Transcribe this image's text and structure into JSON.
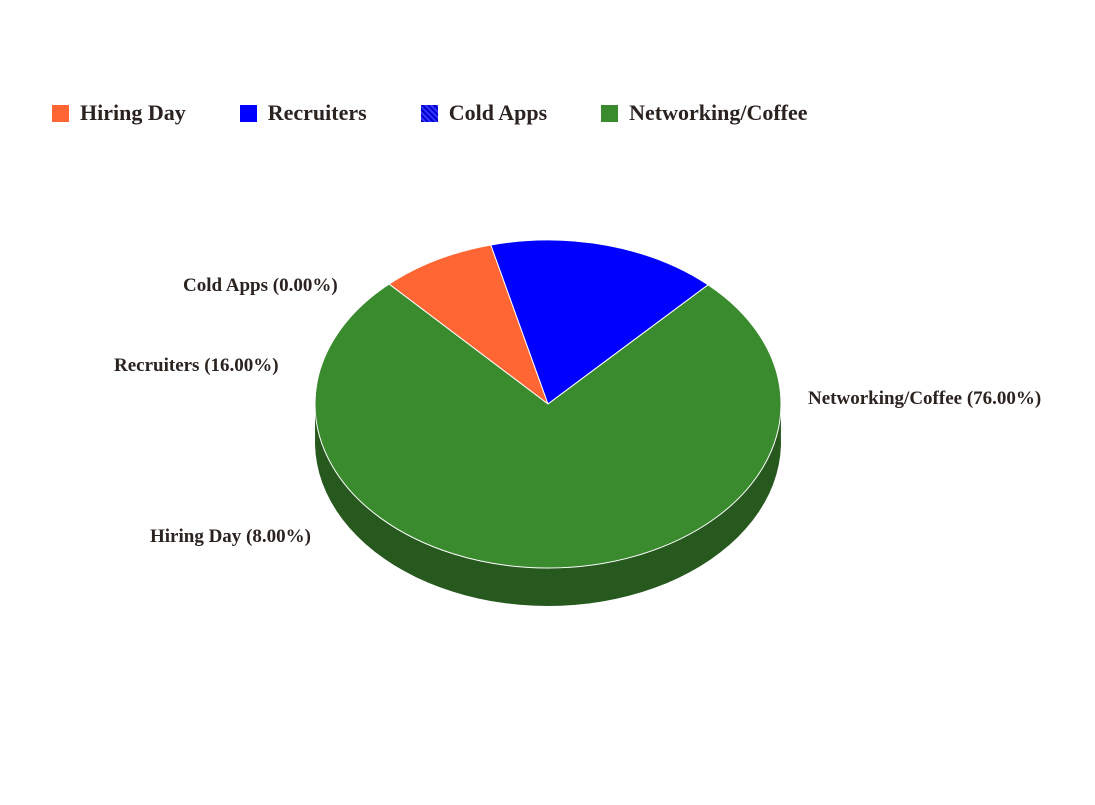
{
  "chart_data": {
    "type": "pie",
    "style": "3d",
    "legend_position": "top-left",
    "slices": [
      {
        "name": "Hiring Day",
        "value": 8.0,
        "label": "Hiring Day (8.00%)",
        "color": "#ff6633",
        "side_color": "#2a1a16"
      },
      {
        "name": "Recruiters",
        "value": 16.0,
        "label": "Recruiters (16.00%)",
        "color": "#0000ff",
        "side_color": "#2a1a16"
      },
      {
        "name": "Cold Apps",
        "value": 0.0,
        "label": "Cold Apps (0.00%)",
        "color": "#0000cc",
        "side_color": "#2a1a16"
      },
      {
        "name": "Networking/Coffee",
        "value": 76.0,
        "label": "Networking/Coffee (76.00%)",
        "color": "#3a8a2e",
        "side_color": "#27591f"
      }
    ]
  }
}
